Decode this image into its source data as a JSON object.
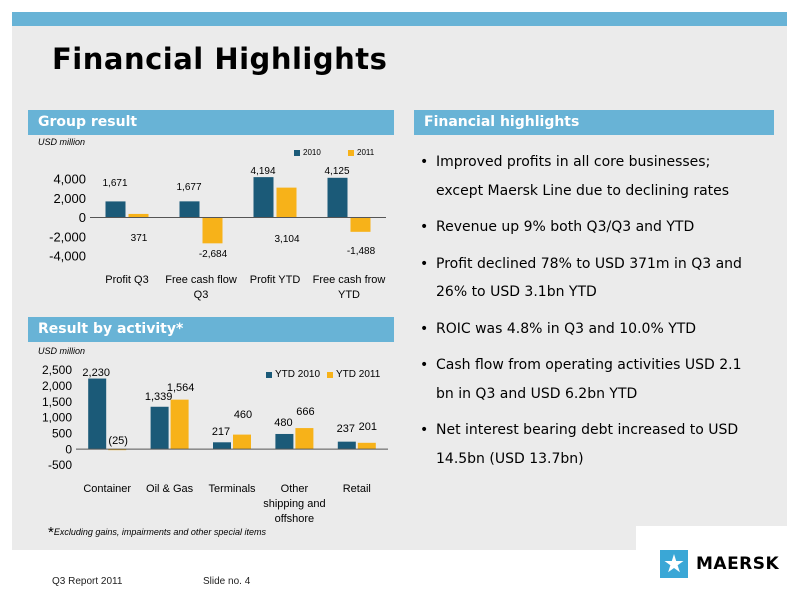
{
  "slide": {
    "title": "Financial Highlights",
    "footer_report": "Q3 Report 2011",
    "footer_slide": "Slide no. 4",
    "brand": "MAERSK",
    "footnote_star": "*",
    "footnote": "Excluding gains, impairments and other special items"
  },
  "sections": {
    "group_result": "Group result",
    "result_by_activity": "Result by activity*",
    "financial_highlights": "Financial highlights"
  },
  "colors": {
    "header": "#68b3d6",
    "series_dark": "#1b5a78",
    "series_orange": "#f7b219",
    "panel": "#ebebeb",
    "logo": "#3aa7d6"
  },
  "icons": {
    "logo": "maersk-star-icon"
  },
  "highlights": [
    "Improved profits in all core businesses; except Maersk Line due to declining rates",
    "Revenue up 9% both Q3/Q3 and YTD",
    "Profit declined 78% to USD 371m in Q3 and 26% to USD 3.1bn YTD",
    "ROIC was 4.8% in Q3 and 10.0% YTD",
    "Cash flow from operating activities USD 2.1 bn in Q3 and USD 6.2bn YTD",
    "Net interest bearing debt increased to USD 14.5bn (USD 13.7bn)"
  ],
  "chart_data": [
    {
      "type": "bar",
      "unit_label": "USD million",
      "categories": [
        [
          "Profit Q3"
        ],
        [
          "Free cash flow",
          "Q3"
        ],
        [
          "Profit YTD"
        ],
        [
          "Free cash frow",
          "YTD"
        ]
      ],
      "series": [
        {
          "name": "2010",
          "values": [
            1671,
            1677,
            4194,
            4125
          ],
          "labels": [
            "1,671",
            "1,677",
            "4,194",
            "4,125"
          ]
        },
        {
          "name": "2011",
          "values": [
            371,
            -2684,
            3104,
            -1488
          ],
          "labels": [
            "371",
            "-2,684",
            "3,104",
            "-1,488"
          ]
        }
      ],
      "yticks": [
        4000,
        2000,
        0,
        -2000,
        -4000
      ],
      "ytick_labels": [
        "4,000",
        "2,000",
        "0",
        "-2,000",
        "-4,000"
      ],
      "ylim": [
        -4000,
        4000
      ],
      "legend": "top-right",
      "grid": false
    },
    {
      "type": "bar",
      "unit_label": "USD million",
      "categories": [
        [
          "Container"
        ],
        [
          "Oil & Gas"
        ],
        [
          "Terminals"
        ],
        [
          "Other",
          "shipping and",
          "offshore"
        ],
        [
          "Retail"
        ]
      ],
      "series": [
        {
          "name": "YTD 2010",
          "values": [
            2230,
            1339,
            217,
            480,
            237
          ],
          "labels": [
            "2,230",
            "1,339",
            "217",
            "480",
            "237"
          ]
        },
        {
          "name": "YTD 2011",
          "values": [
            -25,
            1564,
            460,
            666,
            201
          ],
          "labels": [
            "(25)",
            "1,564",
            "460",
            "666",
            "201"
          ]
        }
      ],
      "yticks": [
        2500,
        2000,
        1500,
        1000,
        500,
        0,
        -500
      ],
      "ytick_labels": [
        "2,500",
        "2,000",
        "1,500",
        "1,000",
        "500",
        "0",
        "-500"
      ],
      "ylim": [
        -500,
        2500
      ],
      "legend": "top-right",
      "grid": false
    }
  ]
}
